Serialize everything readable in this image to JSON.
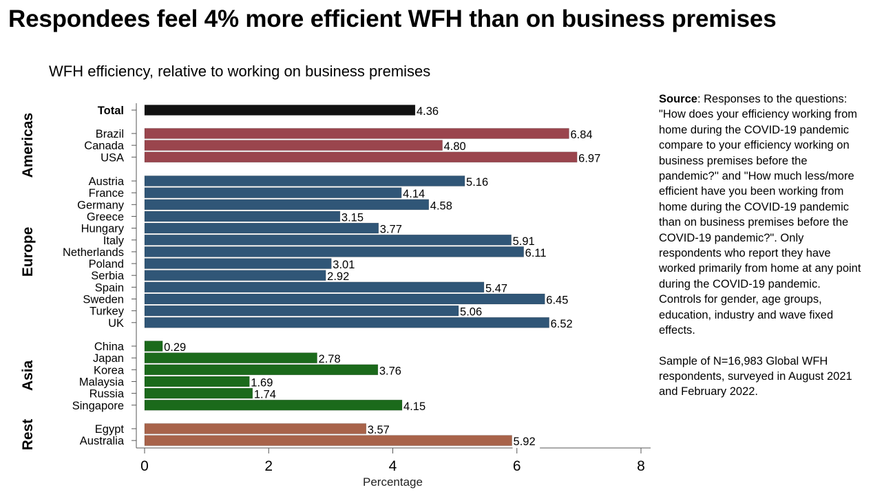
{
  "headline": "Respondees feel 4% more efficient WFH than on business premises",
  "chart_data": {
    "type": "bar",
    "orientation": "horizontal",
    "title": "WFH efficiency, relative to working on business premises",
    "xlabel": "Percentage",
    "xlim": [
      0,
      8
    ],
    "xticks": [
      0,
      2,
      4,
      6,
      8
    ],
    "grid": false,
    "total": {
      "label": "Total",
      "value": 4.36,
      "display": "4.36",
      "color": "#111111"
    },
    "groups": [
      {
        "name": "Americas",
        "color": "#9a454d",
        "items": [
          {
            "label": "Brazil",
            "value": 6.84,
            "display": "6.84"
          },
          {
            "label": "Canada",
            "value": 4.8,
            "display": "4.80"
          },
          {
            "label": "USA",
            "value": 6.97,
            "display": "6.97"
          }
        ]
      },
      {
        "name": "Europe",
        "color": "#305677",
        "items": [
          {
            "label": "Austria",
            "value": 5.16,
            "display": "5.16"
          },
          {
            "label": "France",
            "value": 4.14,
            "display": "4.14"
          },
          {
            "label": "Germany",
            "value": 4.58,
            "display": "4.58"
          },
          {
            "label": "Greece",
            "value": 3.15,
            "display": "3.15"
          },
          {
            "label": "Hungary",
            "value": 3.77,
            "display": "3.77"
          },
          {
            "label": "Italy",
            "value": 5.91,
            "display": "5.91"
          },
          {
            "label": "Netherlands",
            "value": 6.11,
            "display": "6.11"
          },
          {
            "label": "Poland",
            "value": 3.01,
            "display": "3.01"
          },
          {
            "label": "Serbia",
            "value": 2.92,
            "display": "2.92"
          },
          {
            "label": "Spain",
            "value": 5.47,
            "display": "5.47"
          },
          {
            "label": "Sweden",
            "value": 6.45,
            "display": "6.45"
          },
          {
            "label": "Turkey",
            "value": 5.06,
            "display": "5.06"
          },
          {
            "label": "UK",
            "value": 6.52,
            "display": "6.52"
          }
        ]
      },
      {
        "name": "Asia",
        "color": "#1b6a1b",
        "items": [
          {
            "label": "China",
            "value": 0.29,
            "display": "0.29"
          },
          {
            "label": "Japan",
            "value": 2.78,
            "display": "2.78"
          },
          {
            "label": "Korea",
            "value": 3.76,
            "display": "3.76"
          },
          {
            "label": "Malaysia",
            "value": 1.69,
            "display": "1.69"
          },
          {
            "label": "Russia",
            "value": 1.74,
            "display": "1.74"
          },
          {
            "label": "Singapore",
            "value": 4.15,
            "display": "4.15"
          }
        ]
      },
      {
        "name": "Rest",
        "color": "#a8634a",
        "items": [
          {
            "label": "Egypt",
            "value": 3.57,
            "display": "3.57"
          },
          {
            "label": "Australia",
            "value": 5.92,
            "display": "5.92"
          }
        ]
      }
    ]
  },
  "note": {
    "source_label": "Source",
    "source_text": ": Responses to the questions: \"How does your efficiency working from home during the COVID-19 pandemic compare to your efficiency working on business premises before the pandemic?'' and \"How much less/more efficient have you been working from home during the COVID-19 pandemic than on business premises before the COVID-19 pandemic?\". Only respondents who report they have worked primarily from home at any point during the COVID-19 pandemic. Controls for gender, age groups, education, industry and wave fixed effects.",
    "sample_text": "Sample of N=16,983 Global WFH respondents, surveyed in August 2021 and February 2022."
  }
}
